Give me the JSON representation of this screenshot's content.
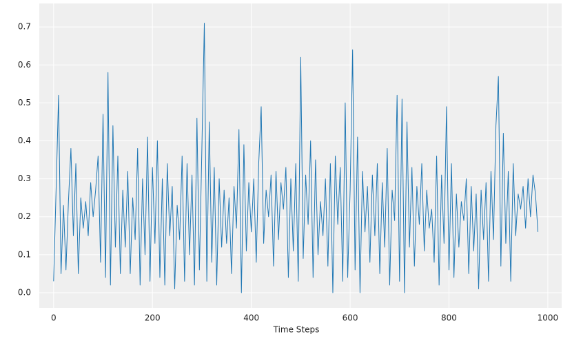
{
  "chart_data": {
    "type": "line",
    "x_label": "Time Steps",
    "x": [
      0,
      5,
      10,
      15,
      20,
      25,
      30,
      35,
      40,
      45,
      50,
      55,
      60,
      65,
      70,
      75,
      80,
      85,
      90,
      95,
      100,
      105,
      110,
      115,
      120,
      125,
      130,
      135,
      140,
      145,
      150,
      155,
      160,
      165,
      170,
      175,
      180,
      185,
      190,
      195,
      200,
      205,
      210,
      215,
      220,
      225,
      230,
      235,
      240,
      245,
      250,
      255,
      260,
      265,
      270,
      275,
      280,
      285,
      290,
      295,
      300,
      305,
      310,
      315,
      320,
      325,
      330,
      335,
      340,
      345,
      350,
      355,
      360,
      365,
      370,
      375,
      380,
      385,
      390,
      395,
      400,
      405,
      410,
      415,
      420,
      425,
      430,
      435,
      440,
      445,
      450,
      455,
      460,
      465,
      470,
      475,
      480,
      485,
      490,
      495,
      500,
      505,
      510,
      515,
      520,
      525,
      530,
      535,
      540,
      545,
      550,
      555,
      560,
      565,
      570,
      575,
      580,
      585,
      590,
      595,
      600,
      605,
      610,
      615,
      620,
      625,
      630,
      635,
      640,
      645,
      650,
      655,
      660,
      665,
      670,
      675,
      680,
      685,
      690,
      695,
      700,
      705,
      710,
      715,
      720,
      725,
      730,
      735,
      740,
      745,
      750,
      755,
      760,
      765,
      770,
      775,
      780,
      785,
      790,
      795,
      800,
      805,
      810,
      815,
      820,
      825,
      830,
      835,
      840,
      845,
      850,
      855,
      860,
      865,
      870,
      875,
      880,
      885,
      890,
      895,
      900,
      905,
      910,
      915,
      920,
      925,
      930,
      935,
      940,
      945,
      950,
      955,
      960,
      965,
      970,
      975,
      980
    ],
    "series": [
      {
        "color": "#1f77b4",
        "values": [
          0.03,
          0.27,
          0.52,
          0.05,
          0.23,
          0.06,
          0.24,
          0.38,
          0.15,
          0.34,
          0.05,
          0.25,
          0.17,
          0.24,
          0.15,
          0.29,
          0.2,
          0.27,
          0.36,
          0.08,
          0.47,
          0.04,
          0.58,
          0.02,
          0.44,
          0.12,
          0.36,
          0.05,
          0.27,
          0.12,
          0.32,
          0.05,
          0.25,
          0.14,
          0.38,
          0.02,
          0.3,
          0.1,
          0.41,
          0.03,
          0.33,
          0.13,
          0.4,
          0.04,
          0.3,
          0.02,
          0.34,
          0.15,
          0.28,
          0.01,
          0.23,
          0.14,
          0.36,
          0.03,
          0.34,
          0.1,
          0.31,
          0.02,
          0.46,
          0.06,
          0.38,
          0.71,
          0.03,
          0.45,
          0.08,
          0.33,
          0.02,
          0.3,
          0.12,
          0.27,
          0.13,
          0.25,
          0.05,
          0.28,
          0.17,
          0.43,
          0.0,
          0.39,
          0.11,
          0.29,
          0.16,
          0.3,
          0.08,
          0.34,
          0.49,
          0.13,
          0.27,
          0.2,
          0.31,
          0.07,
          0.32,
          0.14,
          0.29,
          0.22,
          0.33,
          0.04,
          0.3,
          0.11,
          0.34,
          0.03,
          0.62,
          0.09,
          0.31,
          0.18,
          0.4,
          0.04,
          0.35,
          0.1,
          0.24,
          0.15,
          0.3,
          0.07,
          0.34,
          0.0,
          0.36,
          0.18,
          0.33,
          0.03,
          0.5,
          0.04,
          0.27,
          0.64,
          0.06,
          0.41,
          0.0,
          0.32,
          0.16,
          0.28,
          0.08,
          0.31,
          0.15,
          0.34,
          0.05,
          0.29,
          0.12,
          0.38,
          0.02,
          0.27,
          0.19,
          0.52,
          0.03,
          0.51,
          0.0,
          0.45,
          0.12,
          0.33,
          0.07,
          0.28,
          0.18,
          0.34,
          0.11,
          0.27,
          0.17,
          0.22,
          0.08,
          0.36,
          0.02,
          0.31,
          0.13,
          0.49,
          0.06,
          0.34,
          0.04,
          0.26,
          0.12,
          0.24,
          0.19,
          0.3,
          0.05,
          0.28,
          0.11,
          0.26,
          0.01,
          0.27,
          0.14,
          0.29,
          0.03,
          0.32,
          0.14,
          0.44,
          0.57,
          0.07,
          0.42,
          0.13,
          0.32,
          0.03,
          0.34,
          0.15,
          0.26,
          0.22,
          0.28,
          0.17,
          0.3,
          0.2,
          0.31,
          0.26,
          0.16
        ]
      }
    ],
    "xlim": [
      -29,
      1028
    ],
    "ylim": [
      -0.04,
      0.762
    ],
    "xticks": [
      0,
      200,
      400,
      600,
      800,
      1000
    ],
    "yticks": [
      {
        "value": 0,
        "label": "0.0"
      },
      0.1,
      0.2,
      0.3,
      0.4,
      0.5,
      0.6,
      0.7
    ],
    "grid": true,
    "background": "#efefef"
  }
}
